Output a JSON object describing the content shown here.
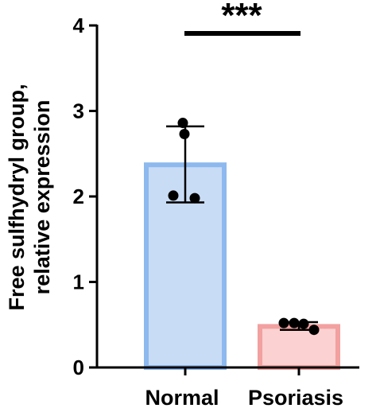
{
  "chart_data": {
    "type": "bar",
    "categories": [
      "Normal",
      "Psoriasis"
    ],
    "values": [
      2.37,
      0.48
    ],
    "error_bars": [
      {
        "low": 1.93,
        "high": 2.82
      },
      {
        "low": 0.44,
        "high": 0.53
      }
    ],
    "points": [
      [
        2.86,
        2.73,
        2.01,
        1.98
      ],
      [
        0.52,
        0.52,
        0.51,
        0.44
      ]
    ],
    "ylabel_lines": [
      "Free sulfhydryl group,",
      "relative expression"
    ],
    "ylim": [
      0,
      4
    ],
    "yticks": [
      "0",
      "1",
      "2",
      "3",
      "4"
    ],
    "significance": "***",
    "colors": {
      "Normal": {
        "fill": "#c9dcf5",
        "stroke": "#8db9ee"
      },
      "Psoriasis": {
        "fill": "#fbd1d1",
        "stroke": "#f2a0a0"
      }
    },
    "grid": false,
    "legend": "none"
  }
}
